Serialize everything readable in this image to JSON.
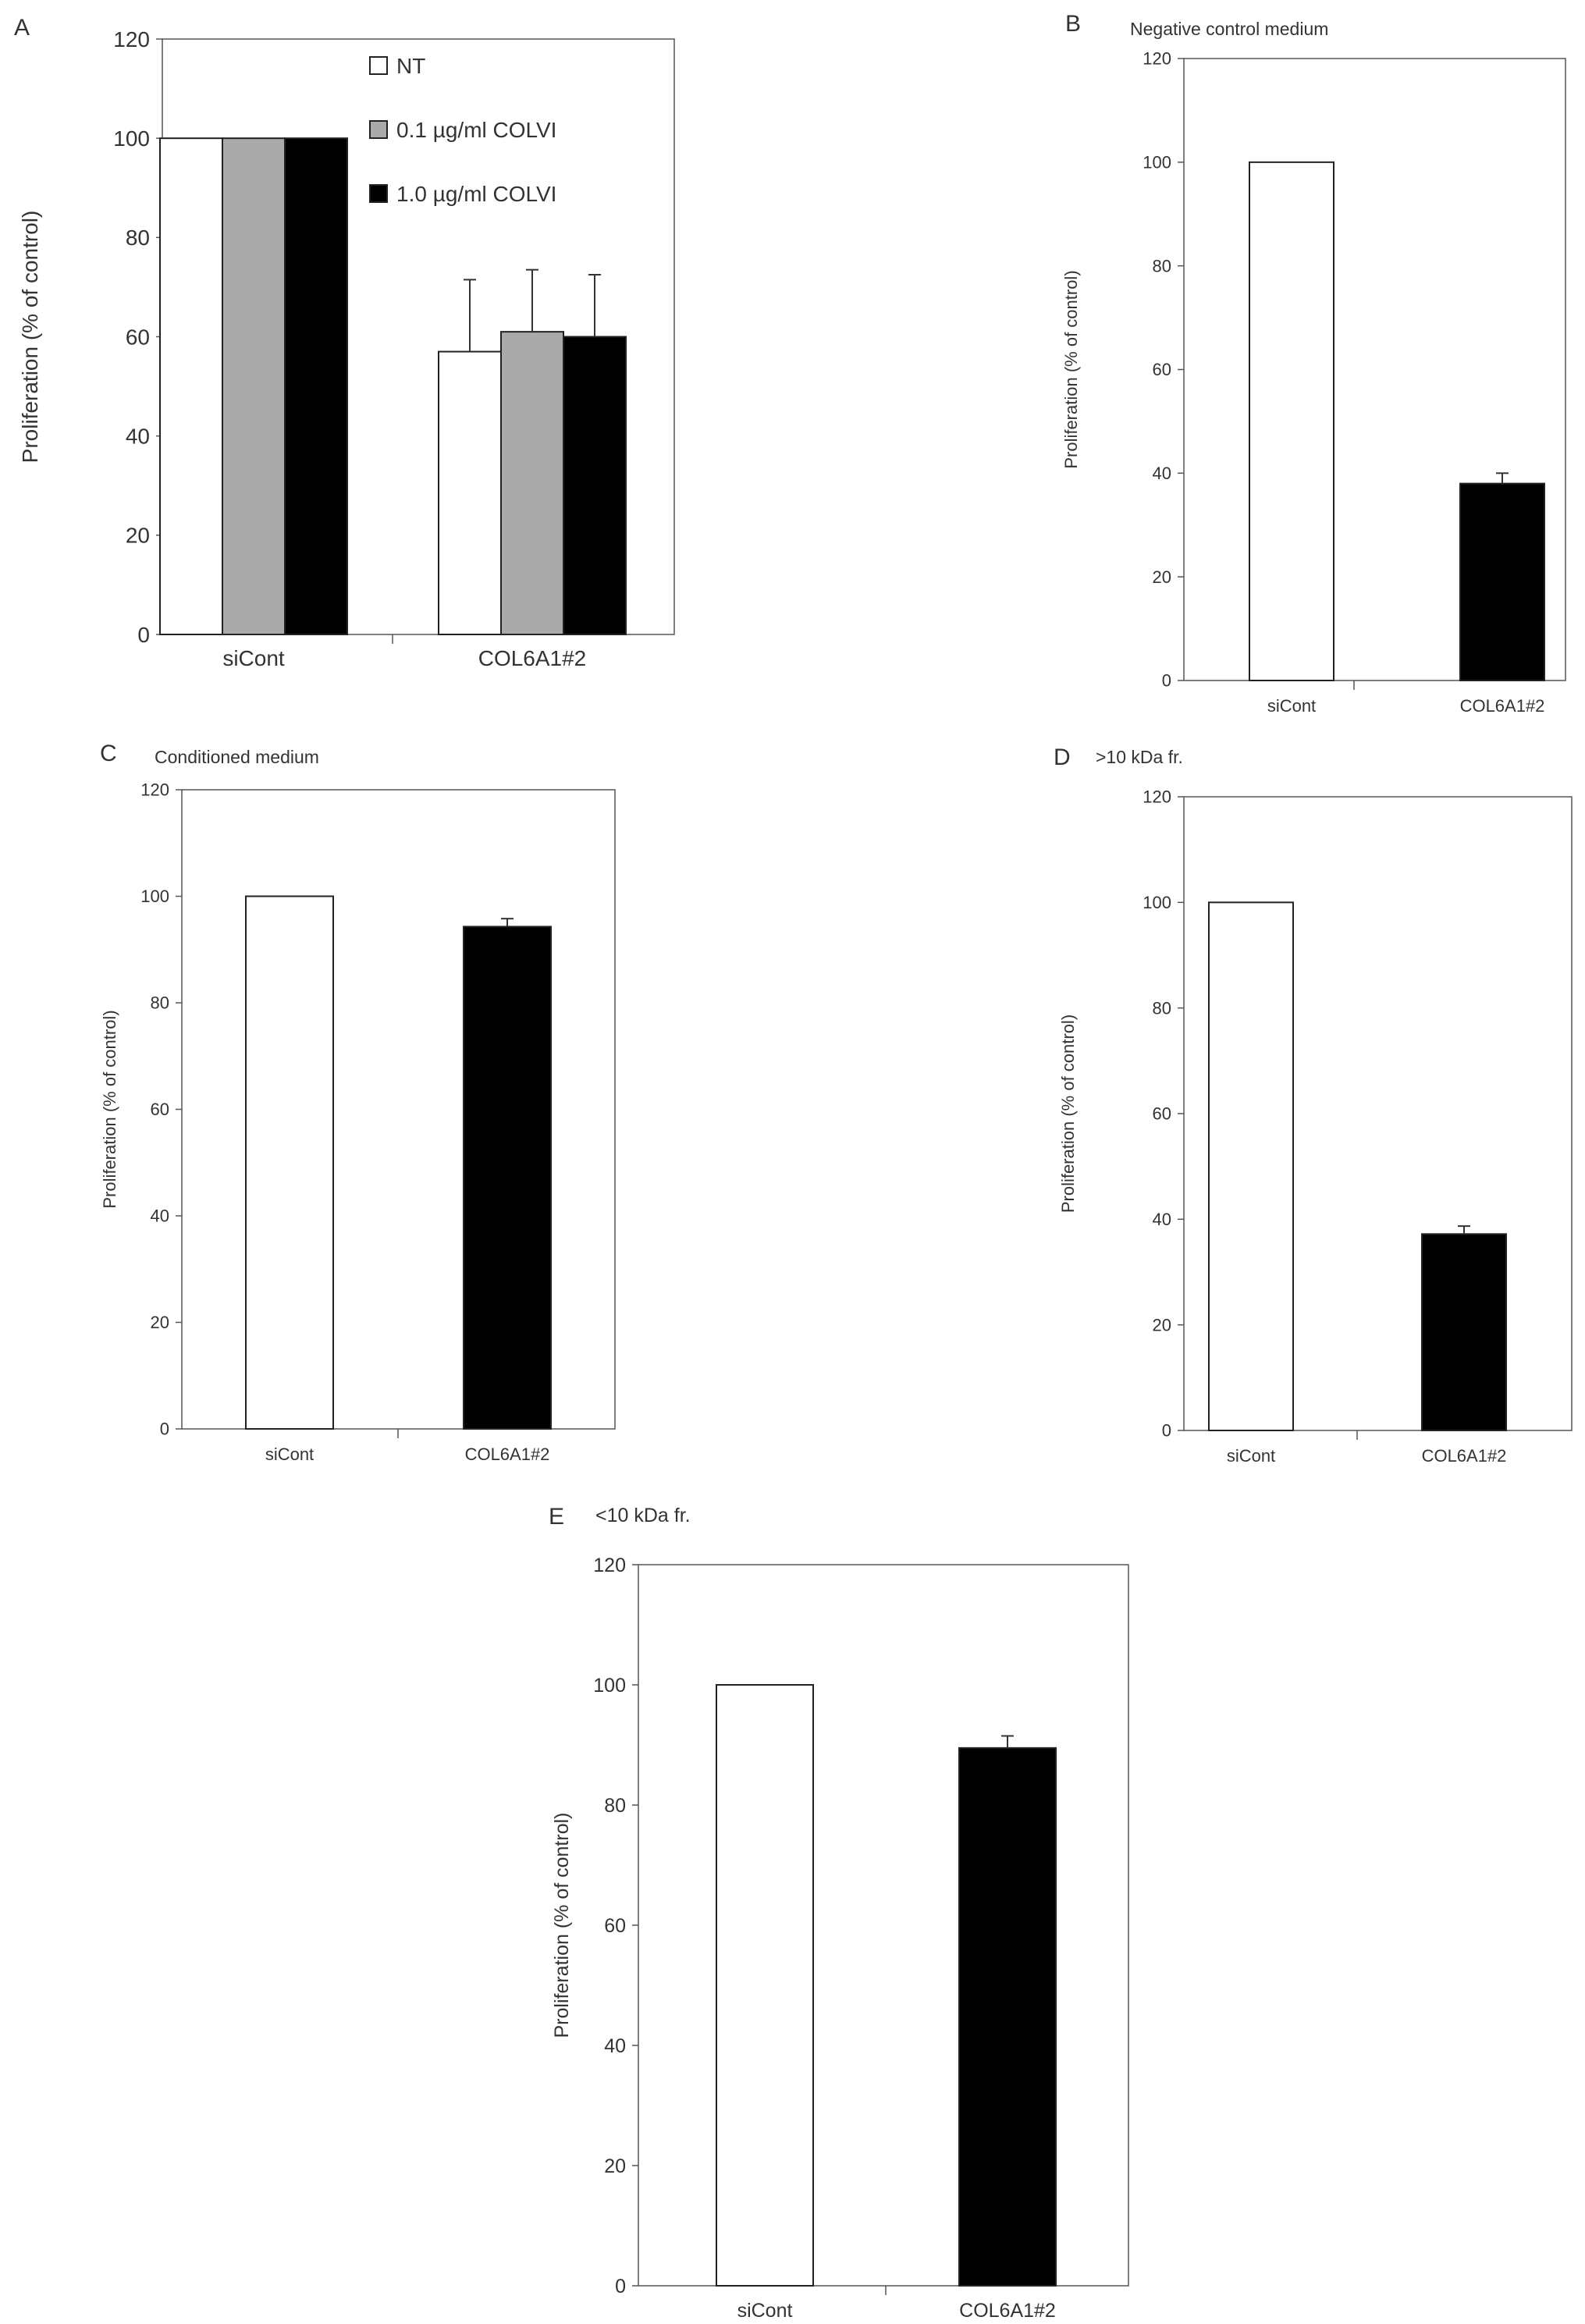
{
  "chart_data": [
    {
      "panel": "A",
      "type": "bar",
      "title": "",
      "ylabel": "Proliferation (% of control)",
      "xlabel": "",
      "ylim": [
        0,
        120
      ],
      "yticks": [
        0,
        20,
        40,
        60,
        80,
        100,
        120
      ],
      "categories": [
        "siCont",
        "COL6A1#2"
      ],
      "legend_position": "top-right",
      "series": [
        {
          "name": "NT",
          "color": "#ffffff",
          "values": [
            100,
            57
          ],
          "errors": [
            0,
            14.5
          ]
        },
        {
          "name": "0.1 µg/ml COLVI",
          "color": "#aaaaaa",
          "values": [
            100,
            61
          ],
          "errors": [
            0,
            12.5
          ]
        },
        {
          "name": "1.0 µg/ml COLVI",
          "color": "#000000",
          "values": [
            100,
            60
          ],
          "errors": [
            0,
            12.5
          ]
        }
      ]
    },
    {
      "panel": "B",
      "type": "bar",
      "title": "Negative control medium",
      "ylabel": "Proliferation (% of control)",
      "xlabel": "",
      "ylim": [
        0,
        120
      ],
      "yticks": [
        0,
        20,
        40,
        60,
        80,
        100,
        120
      ],
      "categories": [
        "siCont",
        "COL6A1#2"
      ],
      "values": [
        100,
        38
      ],
      "errors": [
        0,
        2
      ],
      "colors": [
        "#ffffff",
        "#000000"
      ]
    },
    {
      "panel": "C",
      "type": "bar",
      "title": "Conditioned medium",
      "ylabel": "Proliferation (% of control)",
      "xlabel": "",
      "ylim": [
        0,
        120
      ],
      "yticks": [
        0,
        20,
        40,
        60,
        80,
        100,
        120
      ],
      "categories": [
        "siCont",
        "COL6A1#2"
      ],
      "values": [
        100,
        94.3
      ],
      "errors": [
        0,
        1.5
      ],
      "colors": [
        "#ffffff",
        "#000000"
      ]
    },
    {
      "panel": "D",
      "type": "bar",
      "title": ">10 kDa fr.",
      "ylabel": "Proliferation (% of control)",
      "xlabel": "",
      "ylim": [
        0,
        120
      ],
      "yticks": [
        0,
        20,
        40,
        60,
        80,
        100,
        120
      ],
      "categories": [
        "siCont",
        "COL6A1#2"
      ],
      "values": [
        100,
        37.2
      ],
      "errors": [
        0,
        1.5
      ],
      "colors": [
        "#ffffff",
        "#000000"
      ]
    },
    {
      "panel": "E",
      "type": "bar",
      "title": "<10 kDa fr.",
      "ylabel": "Proliferation (% of control)",
      "xlabel": "",
      "ylim": [
        0,
        120
      ],
      "yticks": [
        0,
        20,
        40,
        60,
        80,
        100,
        120
      ],
      "categories": [
        "siCont",
        "COL6A1#2"
      ],
      "values": [
        100,
        89.5
      ],
      "errors": [
        0,
        2
      ],
      "colors": [
        "#ffffff",
        "#000000"
      ]
    }
  ]
}
